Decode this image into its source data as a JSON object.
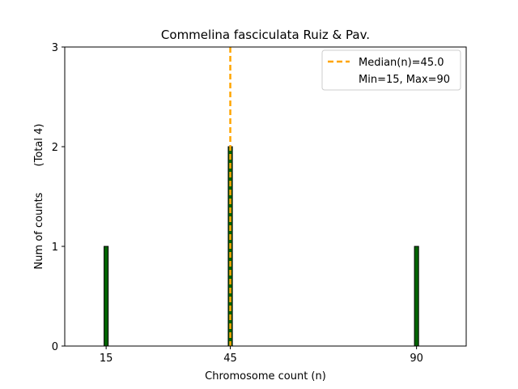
{
  "chart_data": {
    "type": "bar",
    "title": "Commelina fasciculata Ruiz & Pav.",
    "xlabel": "Chromosome count (n)",
    "ylabel": "Num of counts",
    "ylabel_total": "(Total 4)",
    "xlim": [
      5,
      102
    ],
    "ylim": [
      0,
      3
    ],
    "x_ticks": [
      15,
      45,
      90
    ],
    "y_ticks": [
      0,
      1,
      2,
      3
    ],
    "bar_width": 1,
    "bars": [
      {
        "x": 15,
        "value": 1
      },
      {
        "x": 45,
        "value": 2
      },
      {
        "x": 90,
        "value": 1
      }
    ],
    "median_line": {
      "x": 45,
      "label": "Median(n)=45.0"
    },
    "legend": {
      "position": "top-right",
      "entries": [
        "Median(n)=45.0",
        "Min=15, Max=90"
      ]
    },
    "colors": {
      "bar_fill": "#006400",
      "bar_edge": "#000000",
      "median": "#FFA500",
      "axis": "#000000"
    },
    "grid": false
  }
}
